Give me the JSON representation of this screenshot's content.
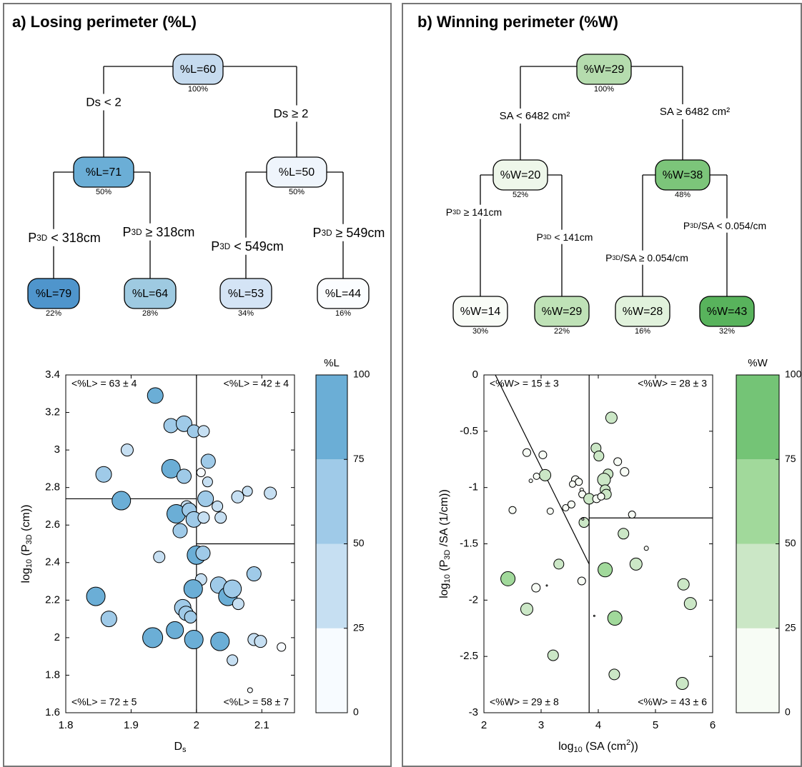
{
  "panel_a": {
    "title": "a) Losing perimeter (%L)",
    "tree": {
      "root": {
        "label": "%L=60",
        "pct": "100%"
      },
      "split1_left": "Ds < 2",
      "split1_right": "Ds ≥ 2",
      "n_left": {
        "label": "%L=71",
        "pct": "50%"
      },
      "n_right": {
        "label": "%L=50",
        "pct": "50%"
      },
      "split2_ll": "P3D < 318cm",
      "split2_lr": "P3D ≥ 318cm",
      "split2_rl": "P3D < 549cm",
      "split2_rr": "P3D ≥ 549cm",
      "leaves": [
        {
          "label": "%L=79",
          "pct": "22%"
        },
        {
          "label": "%L=64",
          "pct": "28%"
        },
        {
          "label": "%L=53",
          "pct": "34%"
        },
        {
          "label": "%L=44",
          "pct": "16%"
        }
      ]
    }
  },
  "panel_b": {
    "title": "b) Winning perimeter (%W)",
    "tree": {
      "root": {
        "label": "%W=29",
        "pct": "100%"
      },
      "split1_left": "SA < 6482 cm²",
      "split1_right": "SA ≥ 6482 cm²",
      "n_left": {
        "label": "%W=20",
        "pct": "52%"
      },
      "n_right": {
        "label": "%W=38",
        "pct": "48%"
      },
      "split2_ll": "P3D ≥ 141cm",
      "split2_lr": "P3D < 141cm",
      "split2_rl": "P3D/SA ≥ 0.054/cm",
      "split2_rr": "P3D/SA < 0.054/cm",
      "leaves": [
        {
          "label": "%W=14",
          "pct": "30%"
        },
        {
          "label": "%W=29",
          "pct": "22%"
        },
        {
          "label": "%W=28",
          "pct": "16%"
        },
        {
          "label": "%W=43",
          "pct": "32%"
        }
      ]
    }
  },
  "chart_data": [
    {
      "type": "scatter",
      "title": "",
      "xlabel": "Ds",
      "ylabel": "log10 (P3D (cm))",
      "xlim": [
        1.8,
        2.15
      ],
      "ylim": [
        1.6,
        3.4
      ],
      "xticks": [
        "1.8",
        "1.9",
        "2",
        "2.1"
      ],
      "yticks": [
        "1.6",
        "1.8",
        "2",
        "2.2",
        "2.4",
        "2.6",
        "2.8",
        "3",
        "3.2",
        "3.4"
      ],
      "colorbar": {
        "label": "%L",
        "levels": [
          0,
          25,
          50,
          75,
          100
        ],
        "colors": [
          "#f7fbff",
          "#c6dff2",
          "#9fcae8",
          "#6baed6"
        ]
      },
      "quadrants": [
        {
          "text": "<%L> = 63 ± 4",
          "corner": "top-left"
        },
        {
          "text": "<%L> = 42 ± 4",
          "corner": "top-right"
        },
        {
          "text": "<%L> = 72 ± 5",
          "corner": "bottom-left"
        },
        {
          "text": "<%L> = 58 ± 7",
          "corner": "bottom-right"
        }
      ],
      "split_lines": [
        {
          "x1": 1.8,
          "y1": 2.74,
          "x2": 2.0,
          "y2": 2.74
        },
        {
          "x1": 2.0,
          "y1": 2.5,
          "x2": 2.15,
          "y2": 2.5
        },
        {
          "x1": 2.0,
          "y1": 1.6,
          "x2": 2.0,
          "y2": 3.4
        }
      ],
      "points": [
        {
          "x": 1.937,
          "y": 3.29,
          "z": 75,
          "s": 2.2
        },
        {
          "x": 1.961,
          "y": 3.13,
          "z": 60,
          "s": 2.0
        },
        {
          "x": 1.981,
          "y": 3.14,
          "z": 60,
          "s": 2.2
        },
        {
          "x": 1.996,
          "y": 3.1,
          "z": 55,
          "s": 1.8
        },
        {
          "x": 2.011,
          "y": 3.1,
          "z": 40,
          "s": 1.6
        },
        {
          "x": 1.894,
          "y": 3.0,
          "z": 45,
          "s": 1.7
        },
        {
          "x": 1.858,
          "y": 2.87,
          "z": 60,
          "s": 2.2
        },
        {
          "x": 1.961,
          "y": 2.9,
          "z": 85,
          "s": 2.6
        },
        {
          "x": 1.981,
          "y": 2.86,
          "z": 55,
          "s": 2.0
        },
        {
          "x": 2.018,
          "y": 2.94,
          "z": 60,
          "s": 2.0
        },
        {
          "x": 2.007,
          "y": 2.88,
          "z": 0,
          "s": 1.2
        },
        {
          "x": 2.017,
          "y": 2.83,
          "z": 40,
          "s": 1.4
        },
        {
          "x": 1.885,
          "y": 2.73,
          "z": 85,
          "s": 2.6
        },
        {
          "x": 2.014,
          "y": 2.74,
          "z": 60,
          "s": 2.2
        },
        {
          "x": 2.063,
          "y": 2.75,
          "z": 40,
          "s": 1.7
        },
        {
          "x": 2.078,
          "y": 2.78,
          "z": 40,
          "s": 1.4
        },
        {
          "x": 2.113,
          "y": 2.77,
          "z": 40,
          "s": 1.7
        },
        {
          "x": 1.985,
          "y": 2.7,
          "z": 40,
          "s": 1.6
        },
        {
          "x": 2.032,
          "y": 2.7,
          "z": 40,
          "s": 1.5
        },
        {
          "x": 1.969,
          "y": 2.66,
          "z": 85,
          "s": 2.6
        },
        {
          "x": 1.989,
          "y": 2.68,
          "z": 55,
          "s": 2.0
        },
        {
          "x": 1.996,
          "y": 2.63,
          "z": 55,
          "s": 2.2
        },
        {
          "x": 2.011,
          "y": 2.64,
          "z": 40,
          "s": 1.6
        },
        {
          "x": 2.037,
          "y": 2.64,
          "z": 40,
          "s": 1.6
        },
        {
          "x": 1.975,
          "y": 2.57,
          "z": 55,
          "s": 2.0
        },
        {
          "x": 1.943,
          "y": 2.43,
          "z": 40,
          "s": 1.6
        },
        {
          "x": 2.0,
          "y": 2.44,
          "z": 85,
          "s": 2.6
        },
        {
          "x": 2.01,
          "y": 2.45,
          "z": 55,
          "s": 2.0
        },
        {
          "x": 2.088,
          "y": 2.34,
          "z": 60,
          "s": 2.0
        },
        {
          "x": 2.007,
          "y": 2.31,
          "z": 40,
          "s": 1.6
        },
        {
          "x": 1.846,
          "y": 2.22,
          "z": 85,
          "s": 2.6
        },
        {
          "x": 1.866,
          "y": 2.1,
          "z": 60,
          "s": 2.2
        },
        {
          "x": 1.995,
          "y": 2.26,
          "z": 85,
          "s": 2.6
        },
        {
          "x": 2.034,
          "y": 2.28,
          "z": 60,
          "s": 2.3
        },
        {
          "x": 2.048,
          "y": 2.22,
          "z": 85,
          "s": 2.6
        },
        {
          "x": 2.055,
          "y": 2.26,
          "z": 60,
          "s": 2.5
        },
        {
          "x": 2.064,
          "y": 2.18,
          "z": 40,
          "s": 1.6
        },
        {
          "x": 1.979,
          "y": 2.16,
          "z": 60,
          "s": 2.3
        },
        {
          "x": 1.984,
          "y": 2.13,
          "z": 60,
          "s": 2.0
        },
        {
          "x": 1.991,
          "y": 2.11,
          "z": 55,
          "s": 1.7
        },
        {
          "x": 1.933,
          "y": 2.0,
          "z": 85,
          "s": 2.8
        },
        {
          "x": 1.967,
          "y": 2.04,
          "z": 85,
          "s": 2.4
        },
        {
          "x": 1.996,
          "y": 1.99,
          "z": 85,
          "s": 2.6
        },
        {
          "x": 2.036,
          "y": 1.98,
          "z": 85,
          "s": 2.6
        },
        {
          "x": 2.088,
          "y": 1.99,
          "z": 40,
          "s": 1.7
        },
        {
          "x": 2.098,
          "y": 1.98,
          "z": 40,
          "s": 1.7
        },
        {
          "x": 2.13,
          "y": 1.95,
          "z": 0,
          "s": 1.2
        },
        {
          "x": 2.055,
          "y": 1.88,
          "z": 40,
          "s": 1.5
        },
        {
          "x": 2.082,
          "y": 1.72,
          "z": 0,
          "s": 0.7
        }
      ]
    },
    {
      "type": "scatter",
      "title": "",
      "xlabel": "log10 (SA (cm²))",
      "ylabel": "log10 (P3D /SA (1/cm))",
      "xlim": [
        2,
        6
      ],
      "ylim": [
        -3,
        0
      ],
      "xticks": [
        "2",
        "3",
        "4",
        "5",
        "6"
      ],
      "yticks": [
        "0",
        "-0.5",
        "-1",
        "-1.5",
        "-2",
        "-2.5",
        "-3"
      ],
      "colorbar": {
        "label": "%W",
        "levels": [
          0,
          25,
          50,
          75,
          100
        ],
        "colors": [
          "#f7fcf5",
          "#cbe7c6",
          "#a1d99b",
          "#74c476"
        ]
      },
      "quadrants": [
        {
          "text": "<%W> = 15 ± 3",
          "corner": "top-left"
        },
        {
          "text": "<%W> = 28 ± 3",
          "corner": "top-right"
        },
        {
          "text": "<%W> = 29 ± 8",
          "corner": "bottom-left"
        },
        {
          "text": "<%W> = 43 ± 6",
          "corner": "bottom-right"
        }
      ],
      "split_lines": [
        {
          "x1": 2.2,
          "y1": 0,
          "x2": 3.84,
          "y2": -1.68
        },
        {
          "x1": 3.84,
          "y1": 0,
          "x2": 3.84,
          "y2": -3
        },
        {
          "x1": 3.84,
          "y1": -1.27,
          "x2": 6,
          "y2": -1.27
        }
      ],
      "points": [
        {
          "x": 4.23,
          "y": -0.38,
          "z": 30,
          "s": 1.6
        },
        {
          "x": 2.75,
          "y": -0.69,
          "z": 0,
          "s": 1.1
        },
        {
          "x": 3.03,
          "y": -0.71,
          "z": 0,
          "s": 1.1
        },
        {
          "x": 3.96,
          "y": -0.65,
          "z": 30,
          "s": 1.4
        },
        {
          "x": 4.01,
          "y": -0.72,
          "z": 30,
          "s": 1.4
        },
        {
          "x": 4.34,
          "y": -0.77,
          "z": 0,
          "s": 1.1
        },
        {
          "x": 4.46,
          "y": -0.86,
          "z": 0,
          "s": 1.2
        },
        {
          "x": 3.07,
          "y": -0.89,
          "z": 30,
          "s": 1.6
        },
        {
          "x": 2.92,
          "y": -0.9,
          "z": 0,
          "s": 0.9
        },
        {
          "x": 2.82,
          "y": -0.94,
          "z": 0,
          "s": 0.5
        },
        {
          "x": 3.6,
          "y": -0.93,
          "z": 0,
          "s": 1.1
        },
        {
          "x": 3.66,
          "y": -0.95,
          "z": 0,
          "s": 1.0
        },
        {
          "x": 3.55,
          "y": -0.97,
          "z": 0,
          "s": 0.9
        },
        {
          "x": 4.17,
          "y": -0.88,
          "z": 30,
          "s": 1.4
        },
        {
          "x": 4.1,
          "y": -0.93,
          "z": 30,
          "s": 1.8
        },
        {
          "x": 3.71,
          "y": -1.02,
          "z": 0,
          "s": 0.5
        },
        {
          "x": 3.72,
          "y": -1.06,
          "z": 0,
          "s": 1.0
        },
        {
          "x": 4.12,
          "y": -1.02,
          "z": 30,
          "s": 1.4
        },
        {
          "x": 4.14,
          "y": -1.06,
          "z": 30,
          "s": 1.4
        },
        {
          "x": 3.8,
          "y": -1.1,
          "z": 0,
          "s": 0.6
        },
        {
          "x": 3.84,
          "y": -1.1,
          "z": 30,
          "s": 1.5
        },
        {
          "x": 3.97,
          "y": -1.1,
          "z": 0,
          "s": 1.1
        },
        {
          "x": 4.05,
          "y": -1.08,
          "z": 0,
          "s": 1.0
        },
        {
          "x": 2.5,
          "y": -1.2,
          "z": 0,
          "s": 1.0
        },
        {
          "x": 3.16,
          "y": -1.21,
          "z": 0,
          "s": 0.9
        },
        {
          "x": 3.43,
          "y": -1.18,
          "z": 0,
          "s": 0.9
        },
        {
          "x": 3.53,
          "y": -1.15,
          "z": 0,
          "s": 1.0
        },
        {
          "x": 3.75,
          "y": -1.31,
          "z": 30,
          "s": 1.4
        },
        {
          "x": 3.73,
          "y": -1.28,
          "z": 0,
          "s": 0.3
        },
        {
          "x": 4.59,
          "y": -1.24,
          "z": 0,
          "s": 1.0
        },
        {
          "x": 4.44,
          "y": -1.41,
          "z": 30,
          "s": 1.5
        },
        {
          "x": 4.84,
          "y": -1.54,
          "z": 0,
          "s": 0.6
        },
        {
          "x": 3.31,
          "y": -1.68,
          "z": 30,
          "s": 1.4
        },
        {
          "x": 4.12,
          "y": -1.73,
          "z": 60,
          "s": 2.0
        },
        {
          "x": 4.66,
          "y": -1.68,
          "z": 30,
          "s": 1.7
        },
        {
          "x": 2.42,
          "y": -1.81,
          "z": 60,
          "s": 2.0
        },
        {
          "x": 2.91,
          "y": -1.89,
          "z": 0,
          "s": 1.2
        },
        {
          "x": 3.71,
          "y": -1.83,
          "z": 0,
          "s": 1.1
        },
        {
          "x": 2.75,
          "y": -2.08,
          "z": 40,
          "s": 1.7
        },
        {
          "x": 4.29,
          "y": -2.16,
          "z": 60,
          "s": 2.0
        },
        {
          "x": 5.49,
          "y": -1.86,
          "z": 40,
          "s": 1.6
        },
        {
          "x": 5.61,
          "y": -2.03,
          "z": 40,
          "s": 1.7
        },
        {
          "x": 3.21,
          "y": -2.49,
          "z": 30,
          "s": 1.5
        },
        {
          "x": 4.28,
          "y": -2.66,
          "z": 30,
          "s": 1.5
        },
        {
          "x": 5.47,
          "y": -2.74,
          "z": 40,
          "s": 1.7
        },
        {
          "x": 3.1,
          "y": -1.87,
          "z": 0,
          "s": 0.2
        },
        {
          "x": 3.93,
          "y": -2.14,
          "z": 0,
          "s": 0.2
        }
      ]
    }
  ]
}
